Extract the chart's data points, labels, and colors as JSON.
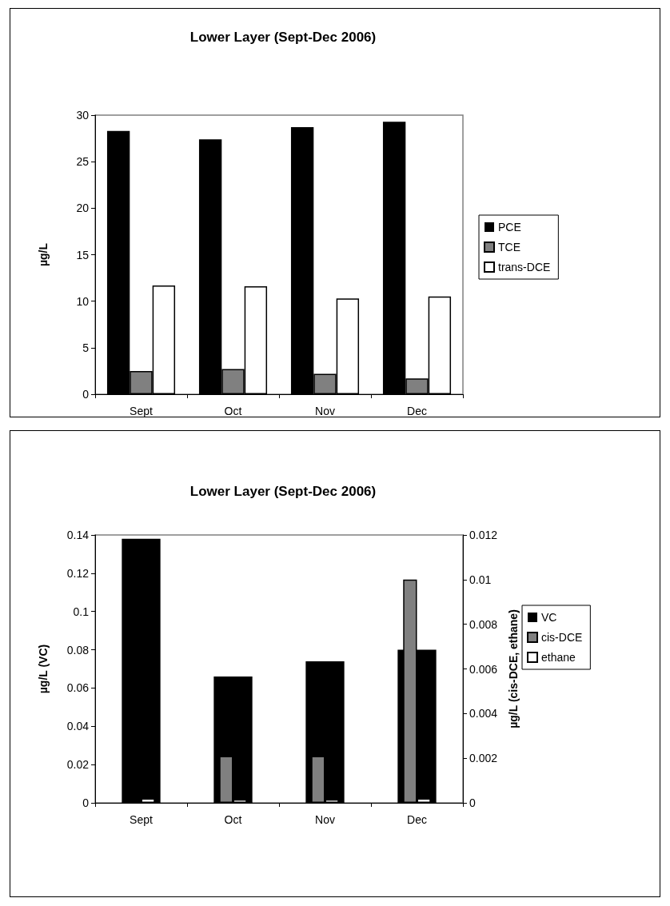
{
  "chart_data": [
    {
      "type": "bar",
      "title": "Lower Layer (Sept-Dec 2006)",
      "ylabel": "µg/L",
      "categories": [
        "Sept",
        "Oct",
        "Nov",
        "Dec"
      ],
      "series": [
        {
          "name": "PCE",
          "color": "#000000",
          "values": [
            28.3,
            27.4,
            28.7,
            29.3
          ]
        },
        {
          "name": "TCE",
          "color": "#808080",
          "values": [
            2.5,
            2.7,
            2.2,
            1.7
          ]
        },
        {
          "name": "trans-DCE",
          "color": "#ffffff",
          "values": [
            11.7,
            11.6,
            10.3,
            10.5
          ]
        }
      ],
      "ylim": [
        0,
        30
      ],
      "yticks": [
        0,
        5,
        10,
        15,
        20,
        25,
        30
      ],
      "grid": false,
      "legend": "right"
    },
    {
      "type": "bar",
      "title": "Lower Layer (Sept-Dec 2006)",
      "ylabel": "µg/L (VC)",
      "y2label": "µg/L (cis-DCE, ethane)",
      "categories": [
        "Sept",
        "Oct",
        "Nov",
        "Dec"
      ],
      "series": [
        {
          "name": "VC",
          "color": "#000000",
          "values": [
            0.138,
            0.066,
            0.074,
            0.08
          ]
        },
        {
          "name": "cis-DCE",
          "color": "#808080",
          "axis": "y2",
          "values": [
            null,
            0.0021,
            0.0021,
            0.01
          ]
        },
        {
          "name": "ethane",
          "color": "#ffffff",
          "axis": "y2",
          "values": [
            0.0002,
            0.00015,
            0.00015,
            0.0002
          ]
        }
      ],
      "ylim": [
        0,
        0.14
      ],
      "yticks": [
        0,
        0.02,
        0.04,
        0.06,
        0.08,
        0.1,
        0.12,
        0.14
      ],
      "y2lim": [
        0,
        0.012
      ],
      "y2ticks": [
        0,
        0.002,
        0.004,
        0.006,
        0.008,
        0.01,
        0.012
      ],
      "grid": false,
      "legend": "right"
    }
  ]
}
